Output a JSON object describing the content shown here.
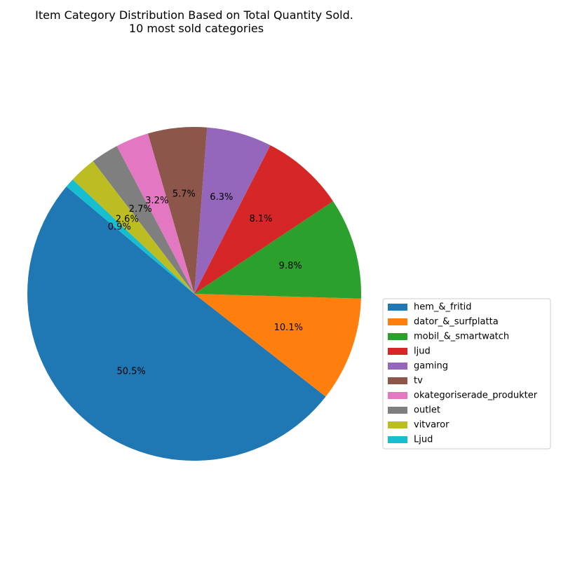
{
  "chart_data": {
    "type": "pie",
    "title": "Item Category Distribution Based on Total Quantity Sold.",
    "subtitle": "10 most sold categories",
    "start_angle_deg": 140,
    "direction": "counterclockwise",
    "legend_placement": "right",
    "slices": [
      {
        "label": "hem_&_fritid",
        "value": 50.5,
        "pct_label": "50.5%",
        "color": "#1f77b4"
      },
      {
        "label": "dator_&_surfplatta",
        "value": 10.1,
        "pct_label": "10.1%",
        "color": "#ff7f0e"
      },
      {
        "label": "mobil_&_smartwatch",
        "value": 9.8,
        "pct_label": "9.8%",
        "color": "#2ca02c"
      },
      {
        "label": "ljud",
        "value": 8.1,
        "pct_label": "8.1%",
        "color": "#d62728"
      },
      {
        "label": "gaming",
        "value": 6.3,
        "pct_label": "6.3%",
        "color": "#9467bd"
      },
      {
        "label": "tv",
        "value": 5.7,
        "pct_label": "5.7%",
        "color": "#8c564b"
      },
      {
        "label": "okategoriserade_produkter",
        "value": 3.2,
        "pct_label": "3.2%",
        "color": "#e377c2"
      },
      {
        "label": "outlet",
        "value": 2.7,
        "pct_label": "2.7%",
        "color": "#7f7f7f"
      },
      {
        "label": "vitvaror",
        "value": 2.6,
        "pct_label": "2.6%",
        "color": "#bcbd22"
      },
      {
        "label": "Ljud",
        "value": 0.9,
        "pct_label": "0.9%",
        "color": "#17becf"
      }
    ]
  }
}
